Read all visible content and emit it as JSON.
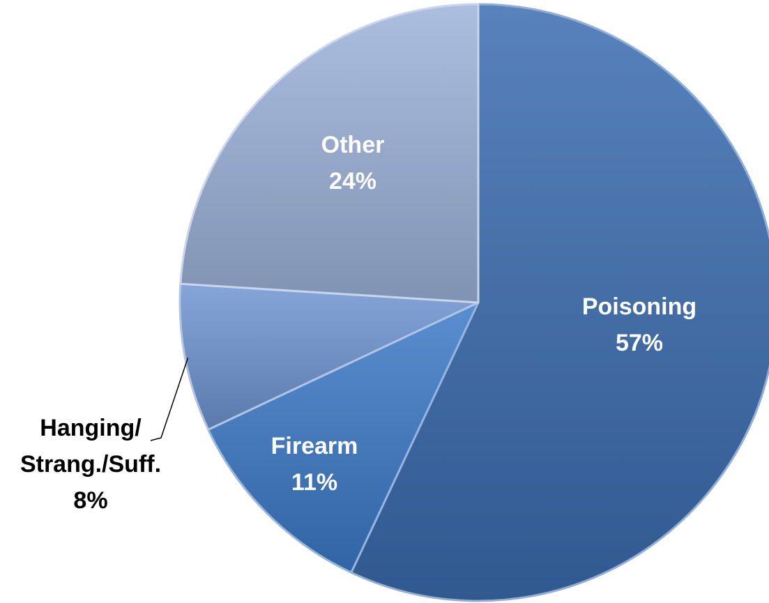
{
  "chart_data": {
    "type": "pie",
    "title": "",
    "slices": [
      {
        "label": "Poisoning",
        "label_lines": [
          "Poisoning"
        ],
        "percent_label": "57%",
        "value": 57,
        "color": "#3A6CB0",
        "label_color": "#FFFFFF",
        "label_position": "inside"
      },
      {
        "label": "Firearm",
        "label_lines": [
          "Firearm"
        ],
        "percent_label": "11%",
        "value": 11,
        "color": "#3C7AC8",
        "label_color": "#FFFFFF",
        "label_position": "inside"
      },
      {
        "label": "Hanging/ Strang./Suff.",
        "label_lines": [
          "Hanging/",
          "Strang./Suff."
        ],
        "percent_label": "8%",
        "value": 8,
        "color": "#6F95D2",
        "label_color": "#000000",
        "label_position": "outside-left"
      },
      {
        "label": "Other",
        "label_lines": [
          "Other"
        ],
        "percent_label": "24%",
        "value": 24,
        "color": "#9DB3DA",
        "label_color": "#FFFFFF",
        "label_position": "inside"
      }
    ],
    "start_angle_deg": 0,
    "direction": "clockwise",
    "legend": "none"
  }
}
